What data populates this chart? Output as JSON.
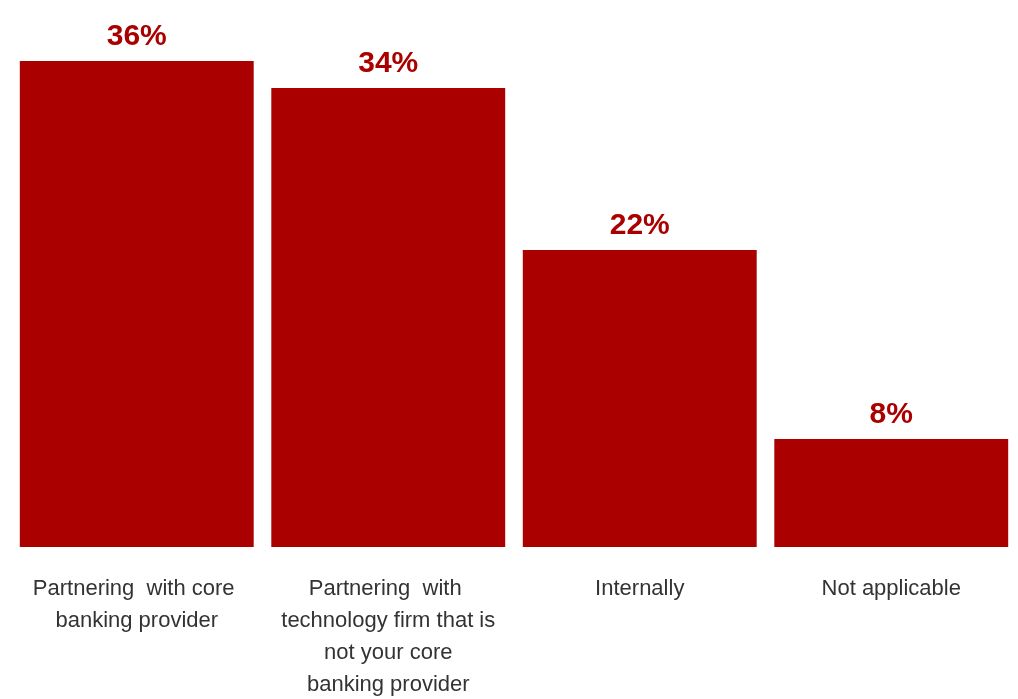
{
  "chart_data": {
    "type": "bar",
    "categories": [
      "Partnering  with core banking provider",
      "Partnering  with technology firm that is not your core banking provider",
      "Internally",
      "Not applicable"
    ],
    "values": [
      36,
      34,
      22,
      8
    ],
    "value_labels": [
      "36%",
      "34%",
      "22%",
      "8%"
    ],
    "color": "#aa0000"
  }
}
